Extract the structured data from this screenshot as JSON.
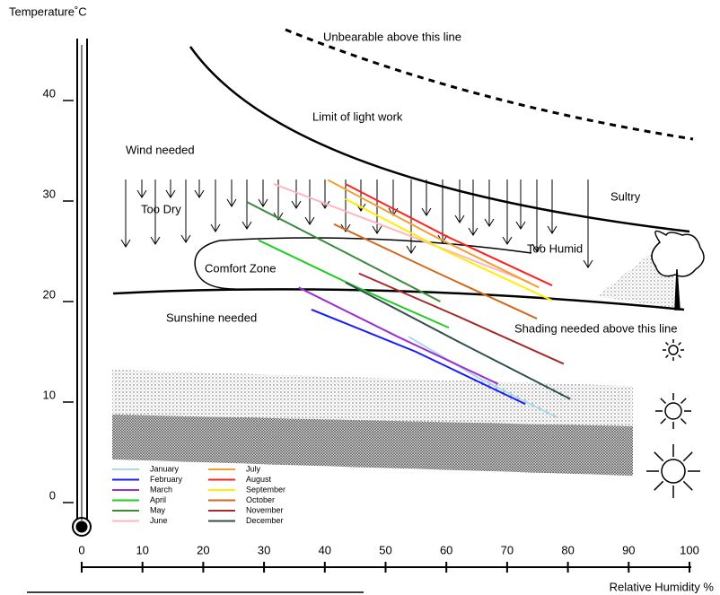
{
  "chart_data": {
    "type": "line",
    "y_label": "Temperature˚C",
    "x_label": "Relative Humidity %",
    "xlim": [
      0,
      100
    ],
    "xticks": [
      0,
      10,
      20,
      30,
      40,
      50,
      60,
      70,
      80,
      90,
      100
    ],
    "ylim": [
      -3,
      45
    ],
    "yticks": [
      0,
      10,
      20,
      30,
      40
    ],
    "annotations": [
      "Unbearable above this line",
      "Limit of light work",
      "Wind needed",
      "Too Dry",
      "Sultry",
      "Too Humid",
      "Comfort Zone",
      "Sunshine needed",
      "Shading needed above this line"
    ],
    "series": [
      {
        "name": "January",
        "color": "#add8e6",
        "x": [
          53.8,
          65,
          78.1
        ],
        "values": [
          16.5,
          12.5,
          8.5
        ]
      },
      {
        "name": "February",
        "color": "#1a1aff",
        "x": [
          37.8,
          55,
          73.0
        ],
        "values": [
          19.2,
          15,
          9.8
        ]
      },
      {
        "name": "March",
        "color": "#9b30d0",
        "x": [
          35.7,
          52,
          68.5
        ],
        "values": [
          21.4,
          16.5,
          11.8
        ]
      },
      {
        "name": "April",
        "color": "#22cc22",
        "x": [
          29.1,
          45,
          60.4
        ],
        "values": [
          26.1,
          21.5,
          17.4
        ]
      },
      {
        "name": "May",
        "color": "#3a8a3a",
        "x": [
          27.2,
          43,
          59.0
        ],
        "values": [
          29.9,
          25,
          20.0
        ]
      },
      {
        "name": "June",
        "color": "#ffb6c1",
        "x": [
          31.6,
          52,
          73.7
        ],
        "values": [
          31.7,
          27,
          21.9
        ]
      },
      {
        "name": "July",
        "color": "#f0a030",
        "x": [
          40.5,
          58,
          75.2
        ],
        "values": [
          32.1,
          26.5,
          21.4
        ]
      },
      {
        "name": "August",
        "color": "#ff2020",
        "x": [
          43.4,
          60,
          77.4
        ],
        "values": [
          31.7,
          26.5,
          21.6
        ]
      },
      {
        "name": "September",
        "color": "#ffee00",
        "x": [
          43.4,
          60,
          77.4
        ],
        "values": [
          30.2,
          25,
          20.1
        ]
      },
      {
        "name": "October",
        "color": "#d2691e",
        "x": [
          41.5,
          58,
          74.9
        ],
        "values": [
          27.7,
          23,
          18.3
        ]
      },
      {
        "name": "November",
        "color": "#a52a2a",
        "x": [
          45.6,
          62,
          79.3
        ],
        "values": [
          22.8,
          18.5,
          13.8
        ]
      },
      {
        "name": "December",
        "color": "#2f4f4f",
        "x": [
          43.4,
          62,
          80.4
        ],
        "values": [
          21.9,
          16,
          10.3
        ]
      }
    ]
  }
}
